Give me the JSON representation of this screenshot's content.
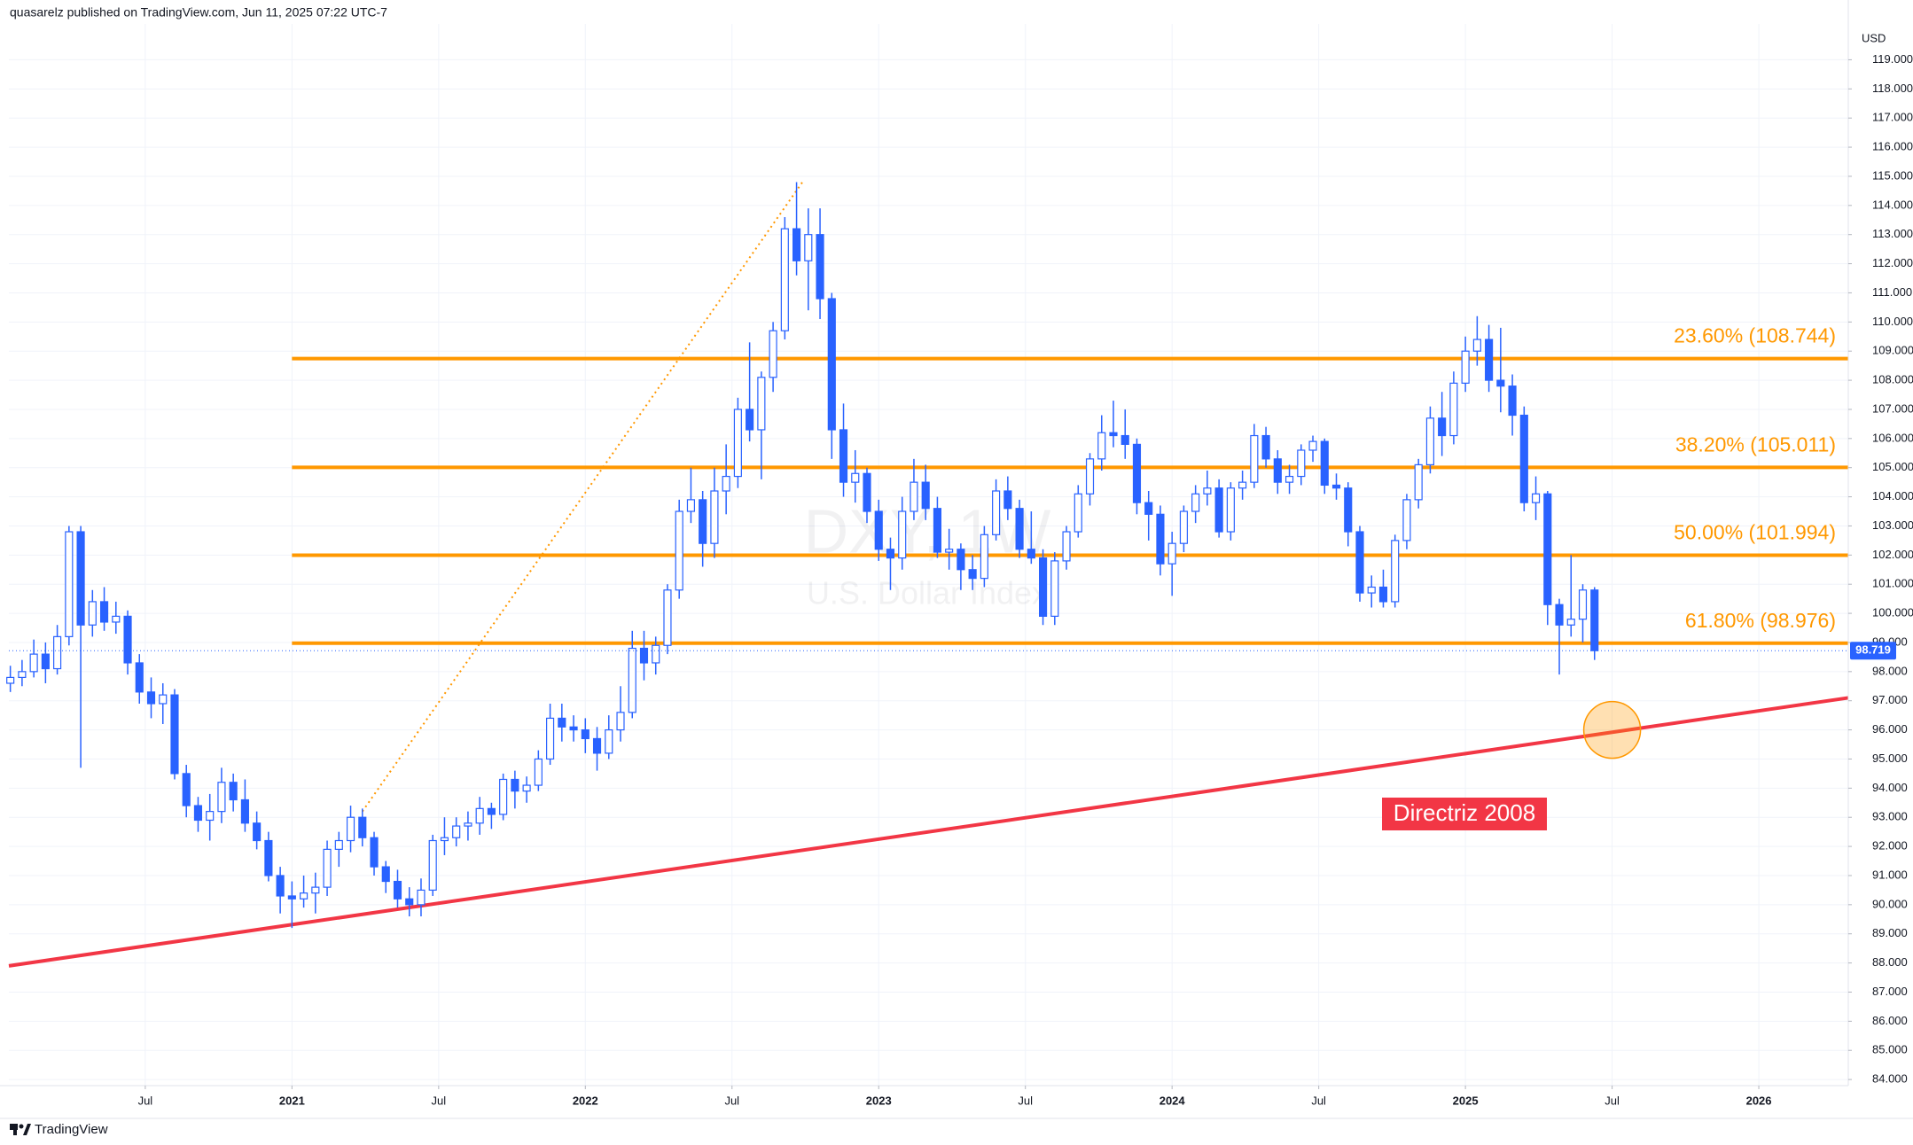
{
  "chart_data": {
    "type": "candlestick",
    "header": "quasarelz published on TradingView.com, Jun 11, 2025 07:22 UTC-7",
    "symbol": "DXY, 1W",
    "description": "U.S. Dollar Index",
    "currency": "USD",
    "brand": "TradingView",
    "color": "#2962ff",
    "grid": true,
    "xlim": [
      2020.035,
      2026.305
    ],
    "ylim": [
      83.79,
      120.23
    ],
    "xticks": [
      {
        "value": 2020.5,
        "label": "Jul"
      },
      2021,
      {
        "value": 2021.5,
        "label": "Jul"
      },
      2022,
      {
        "value": 2022.5,
        "label": "Jul"
      },
      2023,
      {
        "value": 2023.5,
        "label": "Jul"
      },
      2024,
      {
        "value": 2024.5,
        "label": "Jul"
      },
      2025,
      {
        "value": 2025.5,
        "label": "Jul"
      },
      2026
    ],
    "yticks": [
      {
        "value": 84,
        "label": "84.000"
      },
      {
        "value": 85,
        "label": "85.000"
      },
      {
        "value": 86,
        "label": "86.000"
      },
      {
        "value": 87,
        "label": "87.000"
      },
      {
        "value": 88,
        "label": "88.000"
      },
      {
        "value": 89,
        "label": "89.000"
      },
      {
        "value": 90,
        "label": "90.000"
      },
      {
        "value": 91,
        "label": "91.000"
      },
      {
        "value": 92,
        "label": "92.000"
      },
      {
        "value": 93,
        "label": "93.000"
      },
      {
        "value": 94,
        "label": "94.000"
      },
      {
        "value": 95,
        "label": "95.000"
      },
      {
        "value": 96,
        "label": "96.000"
      },
      {
        "value": 97,
        "label": "97.000"
      },
      {
        "value": 98,
        "label": "98.000"
      },
      {
        "value": 99,
        "label": "99.000"
      },
      {
        "value": 100,
        "label": "100.000"
      },
      {
        "value": 101,
        "label": "101.000"
      },
      {
        "value": 102,
        "label": "102.000"
      },
      {
        "value": 103,
        "label": "103.000"
      },
      {
        "value": 104,
        "label": "104.000"
      },
      {
        "value": 105,
        "label": "105.000"
      },
      {
        "value": 106,
        "label": "106.000"
      },
      {
        "value": 107,
        "label": "107.000"
      },
      {
        "value": 108,
        "label": "108.000"
      },
      {
        "value": 109,
        "label": "109.000"
      },
      {
        "value": 110,
        "label": "110.000"
      },
      {
        "value": 111,
        "label": "111.000"
      },
      {
        "value": 112,
        "label": "112.000"
      },
      {
        "value": 113,
        "label": "113.000"
      },
      {
        "value": 114,
        "label": "114.000"
      },
      {
        "value": 115,
        "label": "115.000"
      },
      {
        "value": 116,
        "label": "116.000"
      },
      {
        "value": 117,
        "label": "117.000"
      },
      {
        "value": 118,
        "label": "118.000"
      },
      {
        "value": 119,
        "label": "119.000"
      }
    ],
    "x": [
      2020.04,
      2020.08,
      2020.12,
      2020.16,
      2020.2,
      2020.24,
      2020.28,
      2020.32,
      2020.36,
      2020.4,
      2020.44,
      2020.48,
      2020.52,
      2020.56,
      2020.6,
      2020.64,
      2020.68,
      2020.72,
      2020.76,
      2020.8,
      2020.84,
      2020.88,
      2020.92,
      2020.96,
      2021,
      2021.04,
      2021.08,
      2021.12,
      2021.16,
      2021.2,
      2021.24,
      2021.28,
      2021.32,
      2021.36,
      2021.4,
      2021.44,
      2021.48,
      2021.52,
      2021.56,
      2021.6,
      2021.64,
      2021.68,
      2021.72,
      2021.76,
      2021.8,
      2021.84,
      2021.88,
      2021.92,
      2021.96,
      2022,
      2022.04,
      2022.08,
      2022.12,
      2022.16,
      2022.2,
      2022.24,
      2022.28,
      2022.32,
      2022.36,
      2022.4,
      2022.44,
      2022.48,
      2022.52,
      2022.56,
      2022.6,
      2022.64,
      2022.68,
      2022.72,
      2022.76,
      2022.8,
      2022.84,
      2022.88,
      2022.92,
      2022.96,
      2023,
      2023.04,
      2023.08,
      2023.12,
      2023.16,
      2023.2,
      2023.24,
      2023.28,
      2023.32,
      2023.36,
      2023.4,
      2023.44,
      2023.48,
      2023.52,
      2023.56,
      2023.6,
      2023.64,
      2023.68,
      2023.72,
      2023.76,
      2023.8,
      2023.84,
      2023.88,
      2023.92,
      2023.96,
      2024,
      2024.04,
      2024.08,
      2024.12,
      2024.16,
      2024.2,
      2024.24,
      2024.28,
      2024.32,
      2024.36,
      2024.4,
      2024.44,
      2024.48,
      2024.52,
      2024.56,
      2024.6,
      2024.64,
      2024.68,
      2024.72,
      2024.76,
      2024.8,
      2024.84,
      2024.88,
      2024.92,
      2024.96,
      2025,
      2025.04,
      2025.08,
      2025.12,
      2025.16,
      2025.2,
      2025.24,
      2025.28,
      2025.32,
      2025.36,
      2025.4,
      2025.44
    ],
    "ohlc": [
      [
        97.6,
        98.2,
        97.3,
        97.8
      ],
      [
        97.8,
        98.4,
        97.5,
        98.0
      ],
      [
        98.0,
        99.1,
        97.8,
        98.6
      ],
      [
        98.6,
        99.0,
        97.6,
        98.1
      ],
      [
        98.1,
        99.6,
        97.9,
        99.2
      ],
      [
        99.2,
        103.0,
        98.9,
        102.8
      ],
      [
        102.8,
        103.0,
        94.7,
        99.6
      ],
      [
        99.6,
        100.8,
        99.2,
        100.4
      ],
      [
        100.4,
        100.9,
        99.4,
        99.7
      ],
      [
        99.7,
        100.4,
        99.3,
        99.9
      ],
      [
        99.9,
        100.1,
        97.9,
        98.3
      ],
      [
        98.3,
        98.6,
        96.9,
        97.3
      ],
      [
        97.3,
        97.8,
        96.4,
        96.9
      ],
      [
        96.9,
        97.6,
        96.2,
        97.2
      ],
      [
        97.2,
        97.4,
        94.3,
        94.5
      ],
      [
        94.5,
        94.8,
        93.0,
        93.4
      ],
      [
        93.4,
        93.7,
        92.5,
        92.9
      ],
      [
        92.9,
        93.8,
        92.2,
        93.2
      ],
      [
        93.2,
        94.7,
        92.8,
        94.2
      ],
      [
        94.2,
        94.5,
        93.2,
        93.6
      ],
      [
        93.6,
        94.3,
        92.5,
        92.8
      ],
      [
        92.8,
        93.2,
        91.9,
        92.2
      ],
      [
        92.2,
        92.5,
        90.8,
        91.0
      ],
      [
        91.0,
        91.3,
        89.7,
        90.3
      ],
      [
        90.3,
        90.8,
        89.2,
        90.2
      ],
      [
        90.2,
        91.0,
        89.9,
        90.4
      ],
      [
        90.4,
        91.1,
        89.7,
        90.6
      ],
      [
        90.6,
        92.2,
        90.3,
        91.9
      ],
      [
        91.9,
        92.5,
        91.3,
        92.2
      ],
      [
        92.2,
        93.4,
        91.8,
        93.0
      ],
      [
        93.0,
        93.3,
        92.0,
        92.3
      ],
      [
        92.3,
        92.5,
        91.0,
        91.3
      ],
      [
        91.3,
        91.5,
        90.4,
        90.8
      ],
      [
        90.8,
        91.2,
        89.9,
        90.2
      ],
      [
        90.2,
        90.6,
        89.6,
        90.0
      ],
      [
        90.0,
        90.9,
        89.6,
        90.5
      ],
      [
        90.5,
        92.4,
        90.3,
        92.2
      ],
      [
        92.2,
        93.0,
        91.7,
        92.3
      ],
      [
        92.3,
        93.0,
        92.0,
        92.7
      ],
      [
        92.7,
        93.2,
        92.2,
        92.8
      ],
      [
        92.8,
        93.7,
        92.4,
        93.3
      ],
      [
        93.3,
        93.5,
        92.6,
        93.1
      ],
      [
        93.1,
        94.5,
        92.9,
        94.3
      ],
      [
        94.3,
        94.6,
        93.3,
        93.9
      ],
      [
        93.9,
        94.4,
        93.5,
        94.1
      ],
      [
        94.1,
        95.3,
        93.9,
        95.0
      ],
      [
        95.0,
        96.9,
        94.8,
        96.4
      ],
      [
        96.4,
        96.9,
        95.6,
        96.1
      ],
      [
        96.1,
        96.5,
        95.6,
        96.0
      ],
      [
        96.0,
        96.4,
        95.2,
        95.7
      ],
      [
        95.7,
        96.1,
        94.6,
        95.2
      ],
      [
        95.2,
        96.5,
        95.0,
        96.0
      ],
      [
        96.0,
        97.5,
        95.6,
        96.6
      ],
      [
        96.6,
        99.4,
        96.4,
        98.8
      ],
      [
        98.8,
        99.4,
        97.7,
        98.3
      ],
      [
        98.3,
        99.2,
        97.9,
        98.9
      ],
      [
        98.9,
        101.0,
        98.6,
        100.8
      ],
      [
        100.8,
        103.9,
        100.5,
        103.5
      ],
      [
        103.5,
        105.0,
        103.1,
        103.9
      ],
      [
        103.9,
        104.2,
        101.6,
        102.4
      ],
      [
        102.4,
        105.0,
        101.9,
        104.2
      ],
      [
        104.2,
        105.8,
        103.4,
        104.7
      ],
      [
        104.7,
        107.4,
        104.3,
        107.0
      ],
      [
        107.0,
        109.3,
        105.9,
        106.3
      ],
      [
        106.3,
        108.3,
        104.6,
        108.1
      ],
      [
        108.1,
        110.0,
        107.6,
        109.7
      ],
      [
        109.7,
        113.6,
        109.4,
        113.2
      ],
      [
        113.2,
        114.8,
        111.6,
        112.1
      ],
      [
        112.1,
        113.9,
        110.4,
        113.0
      ],
      [
        113.0,
        113.9,
        110.1,
        110.8
      ],
      [
        110.8,
        111.0,
        105.3,
        106.3
      ],
      [
        106.3,
        107.2,
        104.0,
        104.5
      ],
      [
        104.5,
        105.6,
        103.8,
        104.8
      ],
      [
        104.8,
        105.0,
        103.1,
        103.5
      ],
      [
        103.5,
        103.9,
        101.8,
        102.2
      ],
      [
        102.2,
        102.6,
        100.8,
        101.9
      ],
      [
        101.9,
        104.0,
        101.5,
        103.5
      ],
      [
        103.5,
        105.3,
        103.2,
        104.5
      ],
      [
        104.5,
        105.1,
        103.2,
        103.6
      ],
      [
        103.6,
        104.0,
        101.9,
        102.1
      ],
      [
        102.1,
        102.9,
        101.5,
        102.2
      ],
      [
        102.2,
        102.4,
        100.8,
        101.5
      ],
      [
        101.5,
        102.0,
        100.8,
        101.2
      ],
      [
        101.2,
        103.0,
        100.9,
        102.7
      ],
      [
        102.7,
        104.6,
        102.5,
        104.2
      ],
      [
        104.2,
        104.7,
        103.2,
        103.6
      ],
      [
        103.6,
        103.9,
        101.9,
        102.2
      ],
      [
        102.2,
        103.5,
        101.7,
        101.9
      ],
      [
        101.9,
        102.2,
        99.6,
        99.9
      ],
      [
        99.9,
        102.1,
        99.6,
        101.8
      ],
      [
        101.8,
        103.0,
        101.5,
        102.8
      ],
      [
        102.8,
        104.4,
        102.6,
        104.1
      ],
      [
        104.1,
        105.5,
        103.7,
        105.3
      ],
      [
        105.3,
        106.8,
        104.9,
        106.2
      ],
      [
        106.2,
        107.3,
        105.7,
        106.1
      ],
      [
        106.1,
        107.0,
        105.3,
        105.8
      ],
      [
        105.8,
        106.0,
        103.4,
        103.8
      ],
      [
        103.8,
        104.2,
        102.5,
        103.4
      ],
      [
        103.4,
        103.7,
        101.3,
        101.7
      ],
      [
        101.7,
        102.8,
        100.6,
        102.4
      ],
      [
        102.4,
        103.7,
        102.1,
        103.5
      ],
      [
        103.5,
        104.4,
        103.1,
        104.1
      ],
      [
        104.1,
        104.9,
        103.7,
        104.3
      ],
      [
        104.3,
        104.6,
        102.6,
        102.8
      ],
      [
        102.8,
        104.5,
        102.5,
        104.3
      ],
      [
        104.3,
        104.9,
        103.9,
        104.5
      ],
      [
        104.5,
        106.5,
        104.3,
        106.1
      ],
      [
        106.1,
        106.4,
        105.0,
        105.3
      ],
      [
        105.3,
        105.6,
        104.1,
        104.5
      ],
      [
        104.5,
        105.1,
        104.1,
        104.7
      ],
      [
        104.7,
        105.8,
        104.4,
        105.6
      ],
      [
        105.6,
        106.1,
        105.2,
        105.9
      ],
      [
        105.9,
        106.0,
        104.1,
        104.4
      ],
      [
        104.4,
        104.8,
        103.9,
        104.3
      ],
      [
        104.3,
        104.5,
        102.3,
        102.8
      ],
      [
        102.8,
        103.0,
        100.4,
        100.7
      ],
      [
        100.7,
        101.3,
        100.2,
        100.9
      ],
      [
        100.9,
        101.5,
        100.2,
        100.4
      ],
      [
        100.4,
        102.7,
        100.2,
        102.5
      ],
      [
        102.5,
        104.1,
        102.2,
        103.9
      ],
      [
        103.9,
        105.3,
        103.6,
        105.1
      ],
      [
        105.1,
        107.1,
        104.8,
        106.7
      ],
      [
        106.7,
        107.6,
        105.4,
        106.1
      ],
      [
        106.1,
        108.3,
        105.8,
        107.9
      ],
      [
        107.9,
        109.5,
        107.6,
        109.0
      ],
      [
        109.0,
        110.2,
        108.5,
        109.4
      ],
      [
        109.4,
        109.9,
        107.6,
        108.0
      ],
      [
        108.0,
        109.8,
        106.9,
        107.8
      ],
      [
        107.8,
        108.2,
        106.1,
        106.8
      ],
      [
        106.8,
        107.1,
        103.5,
        103.8
      ],
      [
        103.8,
        104.7,
        103.2,
        104.1
      ],
      [
        104.1,
        104.2,
        99.6,
        100.3
      ],
      [
        100.3,
        100.5,
        97.9,
        99.6
      ],
      [
        99.6,
        102.0,
        99.2,
        99.8
      ],
      [
        99.8,
        101.0,
        99.0,
        100.8
      ],
      [
        100.8,
        100.9,
        98.4,
        98.719
      ]
    ],
    "fib_start": 2021.0,
    "fib_color": "#ff9800",
    "fib_levels": [
      {
        "label": "23.60% (108.744)",
        "value": 108.744
      },
      {
        "label": "38.20% (105.011)",
        "value": 105.011
      },
      {
        "label": "50.00% (101.994)",
        "value": 101.994
      },
      {
        "label": "61.80% (98.976)",
        "value": 98.976
      }
    ],
    "projection": {
      "x": [
        2021.24,
        2022.74
      ],
      "y": [
        93.2,
        114.8
      ]
    },
    "trendline": {
      "label": "Directriz 2008",
      "color": "#f23645",
      "x": [
        2020.035,
        2026.305
      ],
      "y": [
        87.9,
        97.1
      ]
    },
    "highlight": {
      "x": 2025.5,
      "y": 96.0
    }
  }
}
